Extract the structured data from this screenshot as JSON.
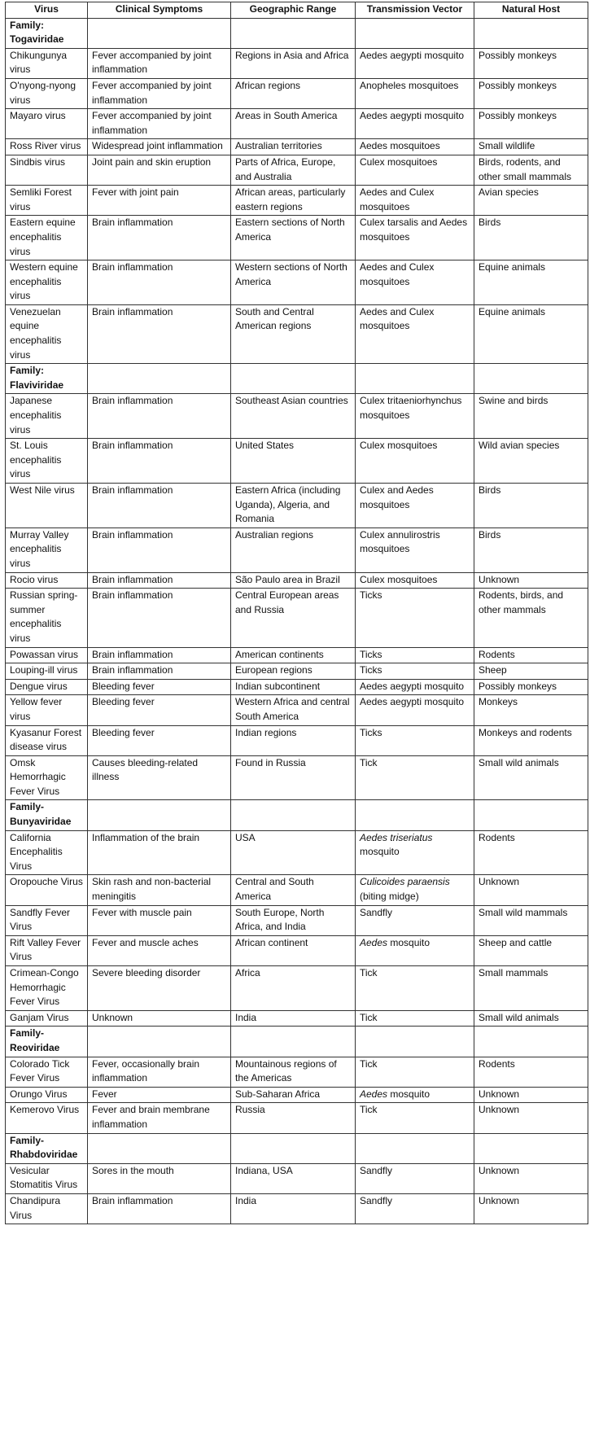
{
  "table": {
    "header": [
      "Virus",
      "Clinical Symptoms",
      "Geographic Range",
      "Transmission Vector",
      "Natural Host"
    ],
    "rows": [
      {
        "family": "Family: Togaviridae"
      },
      {
        "cells": [
          "Chikungunya virus",
          "Fever accompanied by joint inflammation",
          "Regions in Asia and Africa",
          "Aedes aegypti mosquito",
          "Possibly monkeys"
        ]
      },
      {
        "cells": [
          "O'nyong-nyong virus",
          "Fever accompanied by joint inflammation",
          "African regions",
          "Anopheles mosquitoes",
          "Possibly monkeys"
        ]
      },
      {
        "cells": [
          "Mayaro virus",
          "Fever accompanied by joint inflammation",
          "Areas in South America",
          "Aedes aegypti mosquito",
          "Possibly monkeys"
        ]
      },
      {
        "cells": [
          "Ross River virus",
          "Widespread joint inflammation",
          "Australian territories",
          "Aedes mosquitoes",
          "Small wildlife"
        ]
      },
      {
        "cells": [
          "Sindbis virus",
          "Joint pain and skin eruption",
          "Parts of Africa, Europe, and Australia",
          "Culex mosquitoes",
          "Birds, rodents, and other small mammals"
        ]
      },
      {
        "cells": [
          "Semliki Forest virus",
          "Fever with joint pain",
          "African areas, particularly eastern regions",
          "Aedes and Culex mosquitoes",
          "Avian species"
        ]
      },
      {
        "cells": [
          "Eastern equine encephalitis virus",
          "Brain inflammation",
          "Eastern sections of North America",
          "Culex tarsalis and Aedes mosquitoes",
          "Birds"
        ]
      },
      {
        "cells": [
          "Western equine encephalitis virus",
          "Brain inflammation",
          "Western sections of North America",
          "Aedes and Culex mosquitoes",
          "Equine animals"
        ]
      },
      {
        "cells": [
          "Venezuelan equine encephalitis virus",
          "Brain inflammation",
          "South and Central American regions",
          "Aedes and Culex mosquitoes",
          "Equine animals"
        ]
      },
      {
        "family": "Family: Flaviviridae"
      },
      {
        "cells": [
          "Japanese encephalitis virus",
          "Brain inflammation",
          "Southeast Asian countries",
          "Culex tritaeniorhynchus mosquitoes",
          "Swine and birds"
        ]
      },
      {
        "cells": [
          "St. Louis encephalitis virus",
          "Brain inflammation",
          "United States",
          "Culex mosquitoes",
          "Wild avian species"
        ]
      },
      {
        "cells": [
          "West Nile virus",
          "Brain inflammation",
          "Eastern Africa (including Uganda), Algeria, and Romania",
          "Culex and Aedes mosquitoes",
          "Birds"
        ]
      },
      {
        "cells": [
          "Murray Valley encephalitis virus",
          "Brain inflammation",
          "Australian regions",
          "Culex annulirostris mosquitoes",
          "Birds"
        ]
      },
      {
        "cells": [
          "Rocio virus",
          "Brain inflammation",
          "São Paulo area in Brazil",
          "Culex mosquitoes",
          "Unknown"
        ]
      },
      {
        "cells": [
          "Russian spring-summer encephalitis virus",
          "Brain inflammation",
          "Central European areas and Russia",
          "Ticks",
          "Rodents, birds, and other mammals"
        ]
      },
      {
        "cells": [
          "Powassan virus",
          "Brain inflammation",
          "American continents",
          "Ticks",
          "Rodents"
        ]
      },
      {
        "cells": [
          "Louping-ill virus",
          "Brain inflammation",
          "European regions",
          "Ticks",
          "Sheep"
        ]
      },
      {
        "cells": [
          "Dengue virus",
          "Bleeding fever",
          "Indian subcontinent",
          "Aedes aegypti mosquito",
          "Possibly monkeys"
        ]
      },
      {
        "cells": [
          "Yellow fever virus",
          "Bleeding fever",
          "Western Africa and central South America",
          "Aedes aegypti mosquito",
          "Monkeys"
        ]
      },
      {
        "cells": [
          "Kyasanur Forest disease virus",
          "Bleeding fever",
          "Indian regions",
          "Ticks",
          "Monkeys and rodents"
        ]
      },
      {
        "cells": [
          "Omsk Hemorrhagic Fever Virus",
          "Causes bleeding-related illness",
          "Found in Russia",
          "Tick",
          "Small wild animals"
        ]
      },
      {
        "family": "Family- Bunyaviridae"
      },
      {
        "cells": [
          "California Encephalitis Virus",
          "Inflammation of the brain",
          "USA",
          {
            "parts": [
              {
                "text": "Aedes triseriatus",
                "italic": true
              },
              {
                "text": "mosquito"
              }
            ]
          },
          "Rodents"
        ]
      },
      {
        "cells": [
          "Oropouche Virus",
          "Skin rash and non-bacterial meningitis",
          "Central and South America",
          {
            "parts": [
              {
                "text": "Culicoides paraensis",
                "italic": true
              },
              {
                "text": "(biting midge)"
              }
            ]
          },
          "Unknown"
        ]
      },
      {
        "cells": [
          "Sandfly Fever Virus",
          "Fever with muscle pain",
          "South Europe, North Africa, and India",
          "Sandfly",
          "Small wild mammals"
        ]
      },
      {
        "cells": [
          "Rift Valley Fever Virus",
          "Fever and muscle aches",
          "African continent",
          {
            "parts": [
              {
                "text": "Aedes",
                "italic": true
              },
              {
                "text": "mosquito"
              }
            ]
          },
          "Sheep and cattle"
        ]
      },
      {
        "cells": [
          "Crimean-Congo Hemorrhagic Fever Virus",
          "Severe bleeding disorder",
          "Africa",
          "Tick",
          "Small mammals"
        ]
      },
      {
        "cells": [
          "Ganjam Virus",
          "Unknown",
          "India",
          "Tick",
          "Small wild animals"
        ]
      },
      {
        "family": "Family- Reoviridae"
      },
      {
        "cells": [
          "Colorado Tick Fever Virus",
          "Fever, occasionally brain inflammation",
          "Mountainous regions of the Americas",
          "Tick",
          "Rodents"
        ]
      },
      {
        "cells": [
          "Orungo Virus",
          "Fever",
          "Sub-Saharan Africa",
          {
            "parts": [
              {
                "text": "Aedes",
                "italic": true
              },
              {
                "text": "mosquito"
              }
            ]
          },
          "Unknown"
        ]
      },
      {
        "cells": [
          "Kemerovo Virus",
          "Fever and brain membrane inflammation",
          "Russia",
          "Tick",
          "Unknown"
        ]
      },
      {
        "family": "Family- Rhabdoviridae"
      },
      {
        "cells": [
          "Vesicular Stomatitis Virus",
          "Sores in the mouth",
          "Indiana, USA",
          "Sandfly",
          "Unknown"
        ]
      },
      {
        "cells": [
          "Chandipura Virus",
          "Brain inflammation",
          "India",
          "Sandfly",
          "Unknown"
        ]
      }
    ]
  }
}
